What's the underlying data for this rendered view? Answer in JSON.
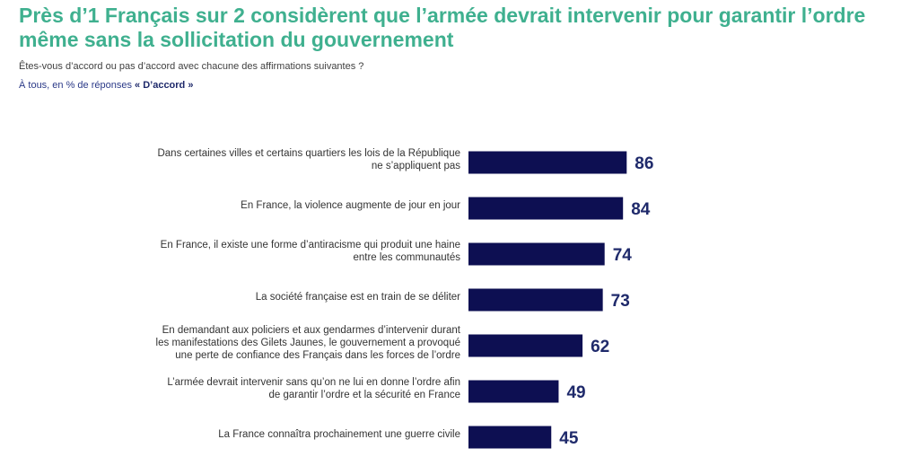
{
  "header": {
    "title": "Près d’1 Français sur 2 considèrent que l’armée devrait intervenir pour garantir l’ordre même sans la sollicitation du gouvernement",
    "question": "Êtes-vous d’accord ou pas d’accord avec chacune des affirmations suivantes ?",
    "base_prefix": "À tous, en % de réponses ",
    "base_accent": "« D’accord »"
  },
  "colors": {
    "title": "#3fb08f",
    "bar": "#0d0f52",
    "value": "#1f2a6b"
  },
  "chart_data": {
    "type": "bar",
    "orientation": "horizontal",
    "title": "Près d’1 Français sur 2 considèrent que l’armée devrait intervenir pour garantir l’ordre même sans la sollicitation du gouvernement",
    "xlabel": "",
    "ylabel": "",
    "xlim": [
      0,
      100
    ],
    "categories": [
      [
        "Dans certaines villes et certains quartiers les lois de la République",
        "ne s’appliquent pas"
      ],
      [
        "En France, la violence augmente de jour en jour"
      ],
      [
        "En France, il existe une forme d’antiracisme qui produit une haine",
        "entre les communautés"
      ],
      [
        "La société française est en train de se déliter"
      ],
      [
        "En demandant aux policiers et aux gendarmes d’intervenir durant",
        "les manifestations des Gilets Jaunes, le gouvernement a provoqué",
        "une perte de confiance des Français dans les forces de l’ordre"
      ],
      [
        "L’armée devrait intervenir sans qu’on ne lui en donne l’ordre afin",
        "de garantir l’ordre et la sécurité en France"
      ],
      [
        "La France connaîtra prochainement une guerre civile"
      ]
    ],
    "values": [
      86,
      84,
      74,
      73,
      62,
      49,
      45
    ]
  }
}
